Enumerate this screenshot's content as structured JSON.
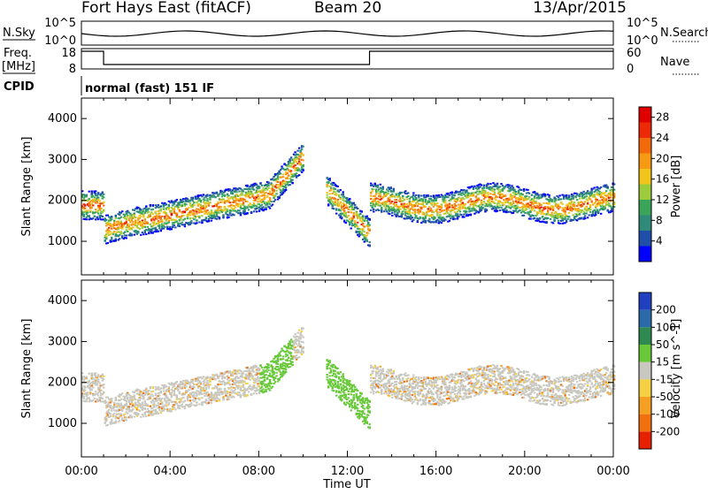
{
  "header": {
    "station": "Fort Hays East (fitACF)",
    "beam": "Beam 20",
    "date": "13/Apr/2015"
  },
  "top_panels": {
    "nsky_label": "N.Sky",
    "nsky_ticks": [
      "10^5",
      "10^0"
    ],
    "nsearch_label": "N.Search",
    "nsearch_ticks": [
      "10^5",
      "10^0"
    ],
    "freq_label": "Freq.",
    "freq_unit": "[MHz]",
    "freq_ticks": [
      "18",
      "8"
    ],
    "nave_label": "Nave",
    "nave_ticks": [
      "60",
      "0"
    ],
    "cpid_label": "CPID",
    "cpid_text": "normal (fast) 151 IF"
  },
  "colors": {
    "power": [
      "#0000ff",
      "#1f4fa8",
      "#2f8a7a",
      "#3aa55a",
      "#9ccc3c",
      "#f3c41a",
      "#f59a12",
      "#f26a0c",
      "#ee2a06",
      "#e00000"
    ],
    "velocity": [
      "#2040c0",
      "#2a6aa8",
      "#2e8a50",
      "#68c83a",
      "#c8c8c0",
      "#f5d040",
      "#f5a020",
      "#f07010",
      "#e62000"
    ]
  },
  "chart_data": [
    {
      "type": "heatmap",
      "name": "Power",
      "ylabel": "Slant Range [km]",
      "xlabel": "Time UT",
      "x_ticks": [
        "00:00",
        "04:00",
        "08:00",
        "12:00",
        "16:00",
        "20:00",
        "00:00"
      ],
      "x_range_hours": [
        0,
        24
      ],
      "y_ticks": [
        1000,
        2000,
        3000,
        4000
      ],
      "y_range_km": [
        180,
        4500
      ],
      "colorbar_label": "Power [dB]",
      "colorbar_ticks": [
        4,
        8,
        12,
        16,
        20,
        24,
        28
      ],
      "colorbar_range": [
        0,
        30
      ]
    },
    {
      "type": "heatmap",
      "name": "Velocity",
      "ylabel": "Slant Range [km]",
      "xlabel": "Time UT",
      "x_ticks": [
        "00:00",
        "04:00",
        "08:00",
        "12:00",
        "16:00",
        "20:00",
        "00:00"
      ],
      "x_range_hours": [
        0,
        24
      ],
      "y_ticks": [
        1000,
        2000,
        3000,
        4000
      ],
      "y_range_km": [
        180,
        4500
      ],
      "colorbar_label": "Velocity [m s^-1]",
      "colorbar_ticks": [
        200,
        100,
        50,
        15,
        -15,
        -50,
        -100,
        -200
      ]
    }
  ]
}
